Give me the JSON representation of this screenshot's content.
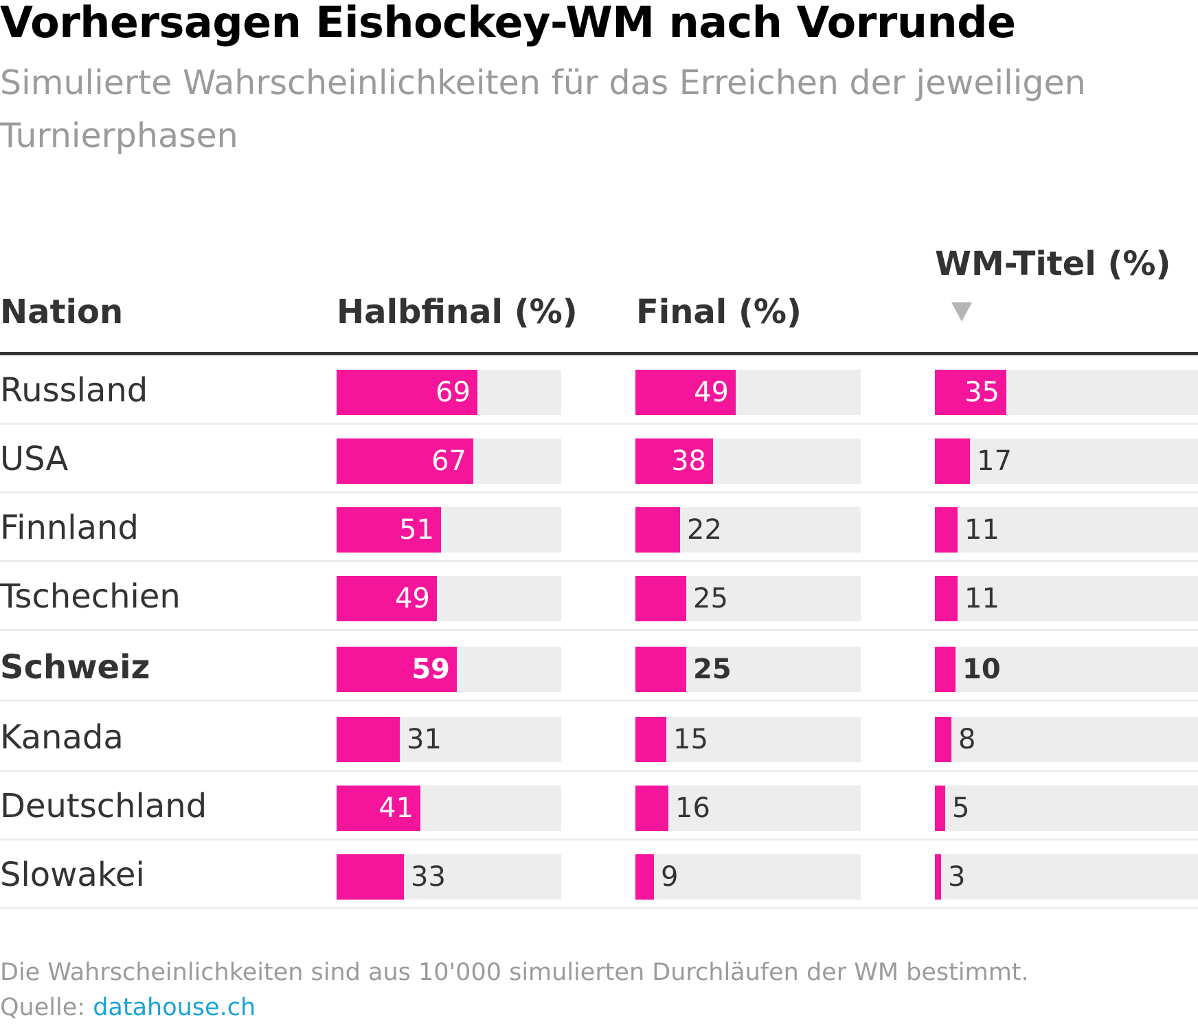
{
  "chart_data": {
    "type": "table",
    "title": "Vorhersagen Eishockey-WM nach Vorrunde",
    "subtitle": "Simulierte Wahrscheinlichkeiten für das Erreichen der jeweiligen Turnierphasen",
    "columns": [
      "Nation",
      "Halbfinal (%)",
      "Final (%)",
      "WM-Titel (%)"
    ],
    "sorted_by": "WM-Titel (%)",
    "sort_direction": "descending",
    "bar_color": "#f5159b",
    "rows": [
      {
        "nation": "Russland",
        "values": [
          69,
          49,
          35
        ],
        "highlight": false
      },
      {
        "nation": "USA",
        "values": [
          67,
          38,
          17
        ],
        "highlight": false
      },
      {
        "nation": "Finnland",
        "values": [
          51,
          22,
          11
        ],
        "highlight": false
      },
      {
        "nation": "Tschechien",
        "values": [
          49,
          25,
          11
        ],
        "highlight": false
      },
      {
        "nation": "Schweiz",
        "values": [
          59,
          25,
          10
        ],
        "highlight": true
      },
      {
        "nation": "Kanada",
        "values": [
          31,
          15,
          8
        ],
        "highlight": false
      },
      {
        "nation": "Deutschland",
        "values": [
          41,
          16,
          5
        ],
        "highlight": false
      },
      {
        "nation": "Slowakei",
        "values": [
          33,
          9,
          3
        ],
        "highlight": false
      }
    ]
  },
  "footer": {
    "note": "Die Wahrscheinlichkeiten sind aus 10'000 simulierten Durchläufen der WM bestimmt.",
    "source_label": "Quelle:",
    "source_link": "datahouse.ch"
  },
  "icons": {
    "sort": "sort-descending-icon"
  }
}
